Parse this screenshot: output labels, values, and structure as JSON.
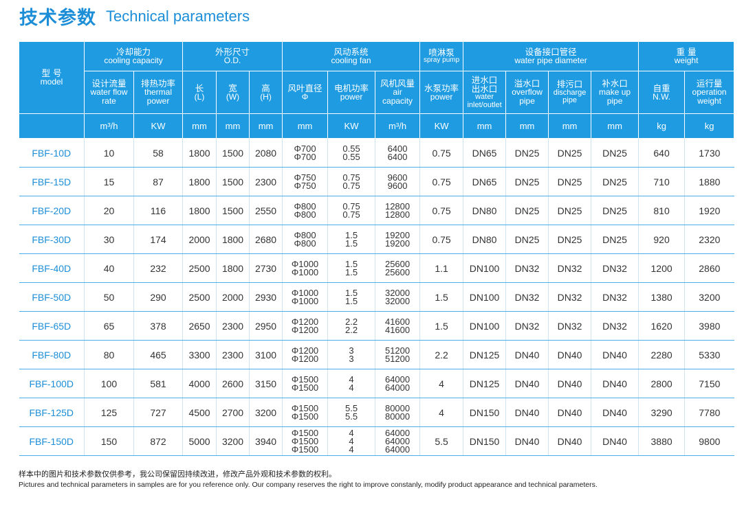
{
  "title": {
    "cn": "技术参数",
    "en": "Technical parameters"
  },
  "headers": {
    "model_cn": "型 号",
    "model_en": "model",
    "cooling_cn": "冷却能力",
    "cooling_en": "cooling capacity",
    "od_cn": "外形尺寸",
    "od_en": "O.D.",
    "fan_cn": "风动系统",
    "fan_en": "cooling fan",
    "spray_cn": "喷淋泵",
    "spray_en": "spray pump",
    "pipe_cn": "设备接口管径",
    "pipe_en": "water pipe diameter",
    "weight_cn": "重 量",
    "weight_en": "weight",
    "flow_cn": "设计流量",
    "flow_en1": "water flow",
    "flow_en2": "rate",
    "thermal_cn": "排热功率",
    "thermal_en1": "thermal",
    "thermal_en2": "power",
    "l_cn": "长",
    "l_en": "(L)",
    "w_cn": "宽",
    "w_en": "(W)",
    "h_cn": "高",
    "h_en": "(H)",
    "blade_cn": "风叶直径",
    "blade_en": "Φ",
    "motor_cn": "电机功率",
    "motor_en": "power",
    "airvol_cn": "风机风量",
    "airvol_en1": "air",
    "airvol_en2": "capacity",
    "pump_cn": "水泵功率",
    "pump_en": "power",
    "inout_cn1": "进水口",
    "inout_cn2": "出水口",
    "inout_en1": "water",
    "inout_en2": "inlet/outlet",
    "overflow_cn": "溢水口",
    "overflow_en1": "overflow",
    "overflow_en2": "pipe",
    "discharge_cn": "排污口",
    "discharge_en1": "discharge",
    "discharge_en2": "pipe",
    "makeup_cn": "补水口",
    "makeup_en1": "make up",
    "makeup_en2": "pipe",
    "nw_cn": "自重",
    "nw_en": "N.W.",
    "opw_cn": "运行量",
    "opw_en1": "operation",
    "opw_en2": "weight"
  },
  "units": [
    "m³/h",
    "KW",
    "mm",
    "mm",
    "mm",
    "mm",
    "KW",
    "m³/h",
    "KW",
    "mm",
    "mm",
    "mm",
    "mm",
    "kg",
    "kg"
  ],
  "rows": [
    {
      "model": "FBF-10D",
      "flow": "10",
      "thermal": "58",
      "l": "1800",
      "w": "1500",
      "h": "2080",
      "blade": [
        "Φ700",
        "Φ700"
      ],
      "motor": [
        "0.55",
        "0.55"
      ],
      "air": [
        "6400",
        "6400"
      ],
      "pump": "0.75",
      "inout": "DN65",
      "overflow": "DN25",
      "discharge": "DN25",
      "makeup": "DN25",
      "nw": "640",
      "opw": "1730"
    },
    {
      "model": "FBF-15D",
      "flow": "15",
      "thermal": "87",
      "l": "1800",
      "w": "1500",
      "h": "2300",
      "blade": [
        "Φ750",
        "Φ750"
      ],
      "motor": [
        "0.75",
        "0.75"
      ],
      "air": [
        "9600",
        "9600"
      ],
      "pump": "0.75",
      "inout": "DN65",
      "overflow": "DN25",
      "discharge": "DN25",
      "makeup": "DN25",
      "nw": "710",
      "opw": "1880"
    },
    {
      "model": "FBF-20D",
      "flow": "20",
      "thermal": "116",
      "l": "1800",
      "w": "1500",
      "h": "2550",
      "blade": [
        "Φ800",
        "Φ800"
      ],
      "motor": [
        "0.75",
        "0.75"
      ],
      "air": [
        "12800",
        "12800"
      ],
      "pump": "0.75",
      "inout": "DN80",
      "overflow": "DN25",
      "discharge": "DN25",
      "makeup": "DN25",
      "nw": "810",
      "opw": "1920"
    },
    {
      "model": "FBF-30D",
      "flow": "30",
      "thermal": "174",
      "l": "2000",
      "w": "1800",
      "h": "2680",
      "blade": [
        "Φ800",
        "Φ800"
      ],
      "motor": [
        "1.5",
        "1.5"
      ],
      "air": [
        "19200",
        "19200"
      ],
      "pump": "0.75",
      "inout": "DN80",
      "overflow": "DN25",
      "discharge": "DN25",
      "makeup": "DN25",
      "nw": "920",
      "opw": "2320"
    },
    {
      "model": "FBF-40D",
      "flow": "40",
      "thermal": "232",
      "l": "2500",
      "w": "1800",
      "h": "2730",
      "blade": [
        "Φ1000",
        "Φ1000"
      ],
      "motor": [
        "1.5",
        "1.5"
      ],
      "air": [
        "25600",
        "25600"
      ],
      "pump": "1.1",
      "inout": "DN100",
      "overflow": "DN32",
      "discharge": "DN32",
      "makeup": "DN32",
      "nw": "1200",
      "opw": "2860"
    },
    {
      "model": "FBF-50D",
      "flow": "50",
      "thermal": "290",
      "l": "2500",
      "w": "2000",
      "h": "2930",
      "blade": [
        "Φ1000",
        "Φ1000"
      ],
      "motor": [
        "1.5",
        "1.5"
      ],
      "air": [
        "32000",
        "32000"
      ],
      "pump": "1.5",
      "inout": "DN100",
      "overflow": "DN32",
      "discharge": "DN32",
      "makeup": "DN32",
      "nw": "1380",
      "opw": "3200"
    },
    {
      "model": "FBF-65D",
      "flow": "65",
      "thermal": "378",
      "l": "2650",
      "w": "2300",
      "h": "2950",
      "blade": [
        "Φ1200",
        "Φ1200"
      ],
      "motor": [
        "2.2",
        "2.2"
      ],
      "air": [
        "41600",
        "41600"
      ],
      "pump": "1.5",
      "inout": "DN100",
      "overflow": "DN32",
      "discharge": "DN32",
      "makeup": "DN32",
      "nw": "1620",
      "opw": "3980"
    },
    {
      "model": "FBF-80D",
      "flow": "80",
      "thermal": "465",
      "l": "3300",
      "w": "2300",
      "h": "3100",
      "blade": [
        "Φ1200",
        "Φ1200"
      ],
      "motor": [
        "3",
        "3"
      ],
      "air": [
        "51200",
        "51200"
      ],
      "pump": "2.2",
      "inout": "DN125",
      "overflow": "DN40",
      "discharge": "DN40",
      "makeup": "DN40",
      "nw": "2280",
      "opw": "5330"
    },
    {
      "model": "FBF-100D",
      "flow": "100",
      "thermal": "581",
      "l": "4000",
      "w": "2600",
      "h": "3150",
      "blade": [
        "Φ1500",
        "Φ1500"
      ],
      "motor": [
        "4",
        "4"
      ],
      "air": [
        "64000",
        "64000"
      ],
      "pump": "4",
      "inout": "DN125",
      "overflow": "DN40",
      "discharge": "DN40",
      "makeup": "DN40",
      "nw": "2800",
      "opw": "7150"
    },
    {
      "model": "FBF-125D",
      "flow": "125",
      "thermal": "727",
      "l": "4500",
      "w": "2700",
      "h": "3200",
      "blade": [
        "Φ1500",
        "Φ1500"
      ],
      "motor": [
        "5.5",
        "5.5"
      ],
      "air": [
        "80000",
        "80000"
      ],
      "pump": "4",
      "inout": "DN150",
      "overflow": "DN40",
      "discharge": "DN40",
      "makeup": "DN40",
      "nw": "3290",
      "opw": "7780"
    },
    {
      "model": "FBF-150D",
      "flow": "150",
      "thermal": "872",
      "l": "5000",
      "w": "3200",
      "h": "3940",
      "blade": [
        "Φ1500",
        "Φ1500",
        "Φ1500"
      ],
      "motor": [
        "4",
        "4",
        "4"
      ],
      "air": [
        "64000",
        "64000",
        "64000"
      ],
      "pump": "5.5",
      "inout": "DN150",
      "overflow": "DN40",
      "discharge": "DN40",
      "makeup": "DN40",
      "nw": "3880",
      "opw": "9800"
    }
  ],
  "footer": {
    "cn": "样本中的图片和技术参数仅供参考，我公司保留因持续改进，修改产品外观和技术参数的权利。",
    "en": "Pictures and technical parameters in samples are for you reference only. Our company reserves the right to improve constanly, modify product appearance and technical parameters."
  },
  "colors": {
    "header_bg": "#1e9be1",
    "title": "#1c8ed8",
    "row_line": "#4aaee6"
  }
}
